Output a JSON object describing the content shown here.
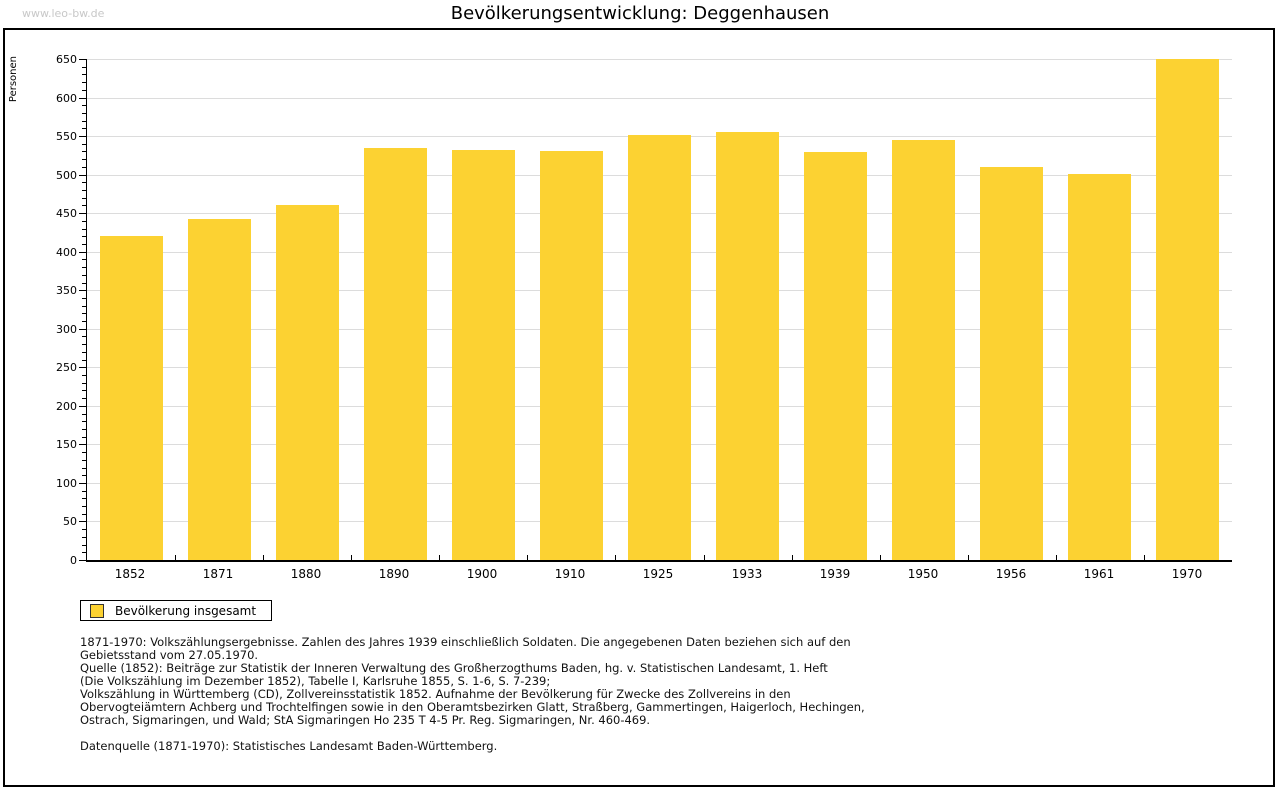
{
  "page": {
    "watermark": "www.leo-bw.de",
    "title": "Bevölkerungsentwicklung: Deggenhausen"
  },
  "legend": {
    "label": "Bevölkerung insgesamt"
  },
  "footer": {
    "lines": [
      "1871-1970: Volkszählungsergebnisse. Zahlen des Jahres 1939 einschließlich Soldaten. Die angegebenen Daten beziehen sich auf den",
      "Gebietsstand vom 27.05.1970.",
      "Quelle (1852): Beiträge zur Statistik der Inneren Verwaltung des Großherzogthums Baden, hg. v. Statistischen Landesamt, 1. Heft",
      "(Die Volkszählung im Dezember 1852), Tabelle I, Karlsruhe 1855, S. 1-6, S. 7-239;",
      "Volkszählung in Württemberg (CD), Zollvereinsstatistik 1852. Aufnahme der Bevölkerung für Zwecke des Zollvereins in den",
      "Obervogteiämtern Achberg und Trochtelfingen sowie in den Oberamtsbezirken Glatt, Straßberg, Gammertingen, Haigerloch, Hechingen,",
      "Ostrach, Sigmaringen, und Wald; StA Sigmaringen Ho 235 T 4-5 Pr. Reg. Sigmaringen, Nr. 460-469."
    ],
    "datenquelle": "Datenquelle (1871-1970): Statistisches Landesamt Baden-Württemberg."
  },
  "colors": {
    "bar": "#FCD232",
    "grid": "#DCDCDC",
    "axis": "#000000",
    "watermark": "#C8C8C8"
  },
  "chart_data": {
    "type": "bar",
    "title": "Bevölkerungsentwicklung: Deggenhausen",
    "xlabel": "",
    "ylabel": "Personen",
    "categories": [
      "1852",
      "1871",
      "1880",
      "1890",
      "1900",
      "1910",
      "1925",
      "1933",
      "1939",
      "1950",
      "1956",
      "1961",
      "1970"
    ],
    "values": [
      421,
      443,
      460,
      535,
      532,
      530,
      551,
      555,
      529,
      545,
      510,
      501,
      650
    ],
    "series_name": "Bevölkerung insgesamt",
    "ylim": [
      0,
      650
    ],
    "ytick_step": 50,
    "y_minor_tick_step": 10,
    "grid": true,
    "legend_position": "bottom-left",
    "bar_color": "#FCD232"
  }
}
